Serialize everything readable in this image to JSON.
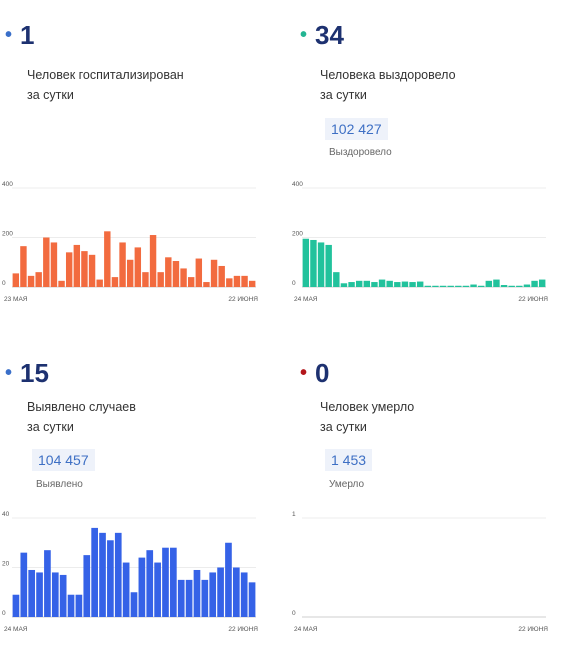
{
  "panels": [
    {
      "dot_color": "#3a6fc9",
      "count": "1",
      "line1": "Человек госпитализирован",
      "line2": "за сутки",
      "total": "",
      "total_label": ""
    },
    {
      "dot_color": "#23b593",
      "count": "34",
      "line1": "Человека выздоровело",
      "line2": "за сутки",
      "total": "102 427",
      "total_label": "Выздоровело"
    },
    {
      "dot_color": "#3a6fc9",
      "count": "15",
      "line1": "Выявлено случаев",
      "line2": "за сутки",
      "total": "104 457",
      "total_label": "Выявлено"
    },
    {
      "dot_color": "#b3161b",
      "count": "0",
      "line1": "Человек умерло",
      "line2": "за сутки",
      "total": "1 453",
      "total_label": "Умерло"
    }
  ],
  "chart_data": [
    {
      "type": "bar",
      "color": "#f26b3f",
      "ylim": [
        0,
        400
      ],
      "yticks": [
        "0",
        "200",
        "400"
      ],
      "x_start_label": "23 МАЯ",
      "x_end_label": "22 ИЮНЯ",
      "values": [
        55,
        165,
        45,
        60,
        200,
        180,
        25,
        140,
        170,
        145,
        130,
        30,
        225,
        40,
        180,
        110,
        160,
        60,
        210,
        60,
        120,
        105,
        75,
        40,
        115,
        20,
        110,
        85,
        35,
        45,
        45,
        25
      ]
    },
    {
      "type": "bar",
      "color": "#22c29c",
      "ylim": [
        0,
        400
      ],
      "yticks": [
        "0",
        "200",
        "400"
      ],
      "x_start_label": "24 МАЯ",
      "x_end_label": "22 ИЮНЯ",
      "values": [
        195,
        190,
        180,
        170,
        60,
        15,
        20,
        25,
        25,
        20,
        30,
        25,
        20,
        22,
        20,
        22,
        5,
        5,
        5,
        5,
        5,
        5,
        10,
        5,
        25,
        30,
        8,
        5,
        5,
        10,
        25,
        30
      ]
    },
    {
      "type": "bar",
      "color": "#3562e7",
      "ylim": [
        0,
        40
      ],
      "yticks": [
        "0",
        "20",
        "40"
      ],
      "x_start_label": "24 МАЯ",
      "x_end_label": "22 ИЮНЯ",
      "values": [
        9,
        26,
        19,
        18,
        27,
        18,
        17,
        9,
        9,
        25,
        36,
        34,
        31,
        34,
        22,
        10,
        24,
        27,
        22,
        28,
        28,
        15,
        15,
        19,
        15,
        18,
        20,
        30,
        20,
        18,
        14
      ]
    },
    {
      "type": "bar",
      "color": "#3562e7",
      "ylim": [
        0,
        1
      ],
      "yticks": [
        "0",
        "1"
      ],
      "x_start_label": "24 МАЯ",
      "x_end_label": "22 ИЮНЯ",
      "values": []
    }
  ]
}
